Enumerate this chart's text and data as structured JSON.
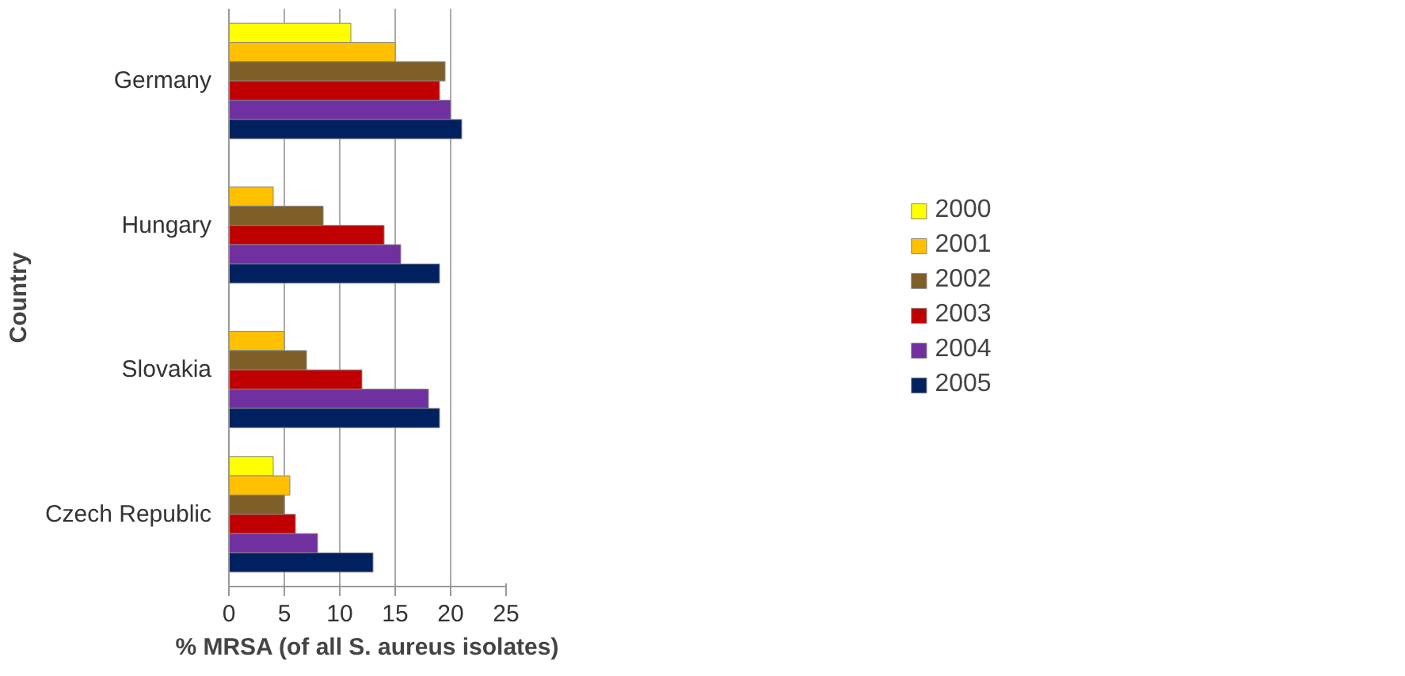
{
  "chart_data": {
    "type": "bar",
    "orientation": "horizontal",
    "xlabel": "% MRSA (of all S. aureus isolates)",
    "ylabel": "Country",
    "categories": [
      "Germany",
      "Hungary",
      "Slovakia",
      "Czech Republic"
    ],
    "series": [
      {
        "name": "2000",
        "color": "#ffff00",
        "values": [
          11,
          null,
          null,
          4
        ]
      },
      {
        "name": "2001",
        "color": "#ffc000",
        "values": [
          15,
          4,
          5,
          5.5
        ]
      },
      {
        "name": "2002",
        "color": "#7f5f28",
        "values": [
          19.5,
          8.5,
          7,
          5
        ]
      },
      {
        "name": "2003",
        "color": "#c00000",
        "values": [
          19,
          14,
          12,
          6
        ]
      },
      {
        "name": "2004",
        "color": "#7030a0",
        "values": [
          20,
          15.5,
          18,
          8
        ]
      },
      {
        "name": "2005",
        "color": "#002060",
        "values": [
          21,
          19,
          19,
          13
        ]
      }
    ],
    "xlim": [
      0,
      25
    ],
    "xticks": [
      0,
      5,
      10,
      15,
      20,
      25
    ],
    "grid": "x",
    "legend": "right"
  }
}
